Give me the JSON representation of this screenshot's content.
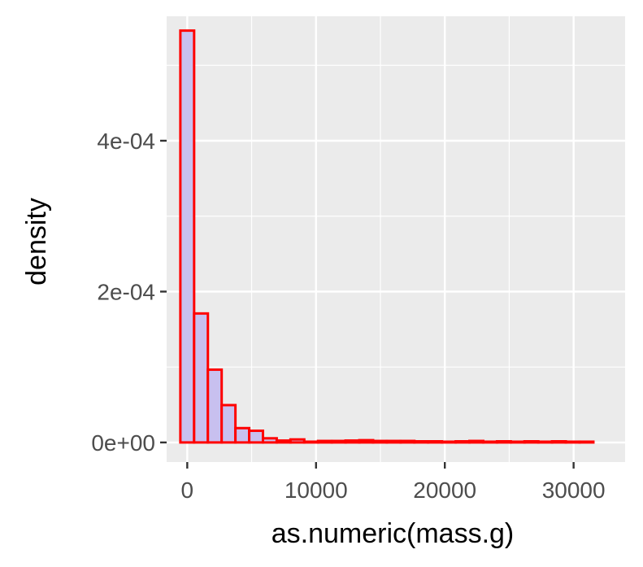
{
  "chart_data": {
    "type": "histogram",
    "xlabel": "as.numeric(mass.g)",
    "ylabel": "density",
    "xlim": [
      -1600,
      34000
    ],
    "ylim": [
      -2.6e-05,
      0.000565
    ],
    "x_ticks": [
      {
        "value": 0,
        "label": "0"
      },
      {
        "value": 10000,
        "label": "10000"
      },
      {
        "value": 20000,
        "label": "20000"
      },
      {
        "value": 30000,
        "label": "30000"
      }
    ],
    "y_ticks": [
      {
        "value": 0,
        "label": "0e+00"
      },
      {
        "value": 0.0002,
        "label": "2e-04"
      },
      {
        "value": 0.0004,
        "label": "4e-04"
      }
    ],
    "bin_width": 1069,
    "bins_start": -535,
    "values": [
      0.000546,
      0.000171,
      9.65e-05,
      4.95e-05,
      1.9e-05,
      1.55e-05,
      5.5e-06,
      2.5e-06,
      4e-06,
      1e-06,
      2e-06,
      2e-06,
      2.5e-06,
      3e-06,
      2e-06,
      2e-06,
      2e-06,
      1.5e-06,
      1.5e-06,
      1e-06,
      1.5e-06,
      2e-06,
      1e-06,
      1.5e-06,
      1e-06,
      1.5e-06,
      1e-06,
      1.5e-06,
      1e-06,
      1e-06
    ],
    "grid": true,
    "colors": {
      "panel": "#ebebeb",
      "grid": "#ffffff",
      "bar_fill": "#c8c0ef",
      "bar_stroke": "#ff0000",
      "tick": "#333333"
    }
  }
}
